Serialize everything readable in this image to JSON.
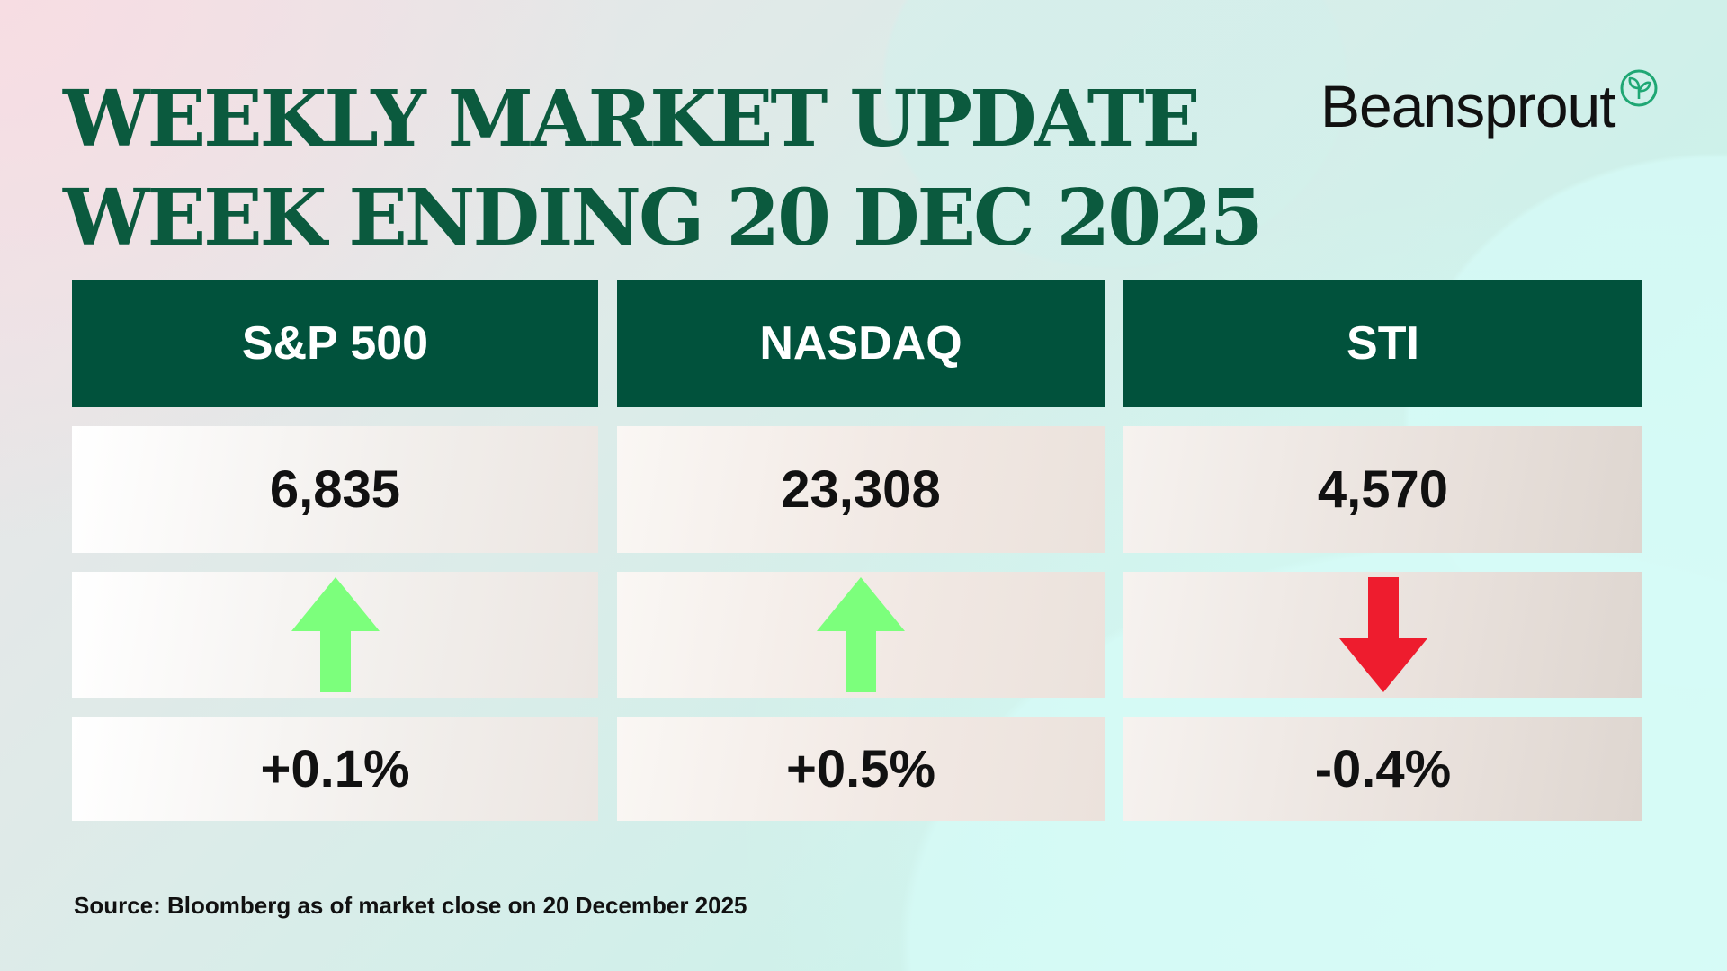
{
  "title": {
    "line1": "WEEKLY MARKET UPDATE",
    "line2": "WEEK ENDING 20 DEC 2025"
  },
  "logo": {
    "text": "Beansprout",
    "icon": "sprout-leaf-icon",
    "icon_color": "#1fa774"
  },
  "indices": [
    {
      "name": "S&P 500",
      "value": "6,835",
      "direction": "up",
      "change": "+0.1%"
    },
    {
      "name": "NASDAQ",
      "value": "23,308",
      "direction": "up",
      "change": "+0.5%"
    },
    {
      "name": "STI",
      "value": "4,570",
      "direction": "down",
      "change": "-0.4%"
    }
  ],
  "colors": {
    "header_bg": "#01523c",
    "up": "#7cff7c",
    "down": "#ee1c2e",
    "title": "#0b5a3e"
  },
  "source": "Source: Bloomberg as of market close on 20 December 2025"
}
